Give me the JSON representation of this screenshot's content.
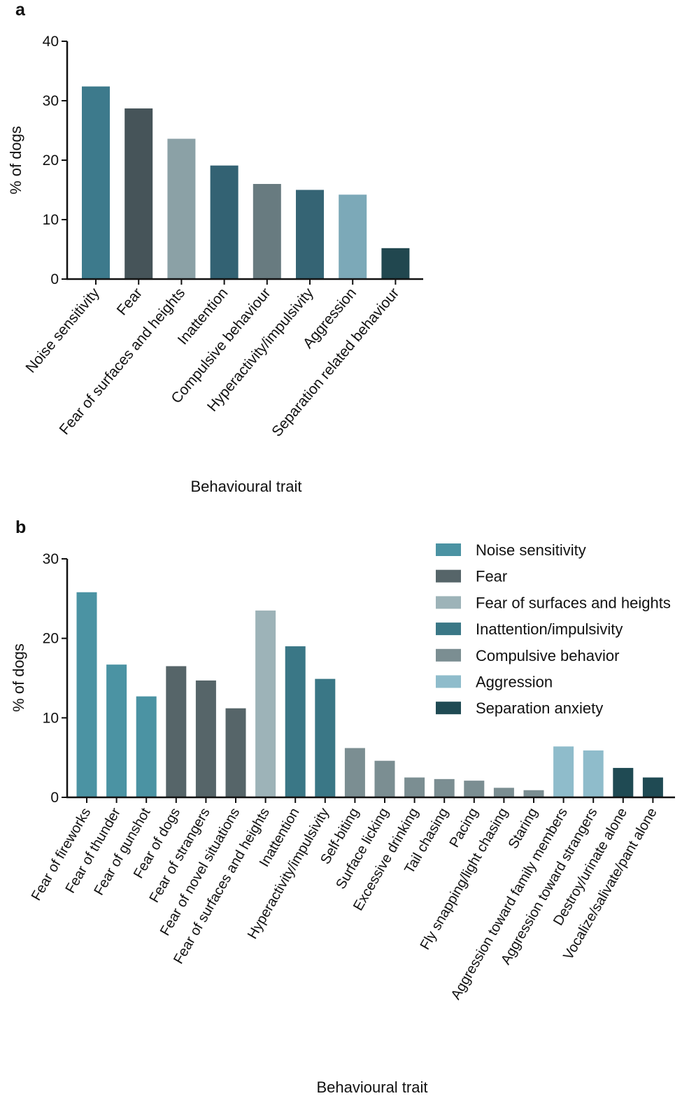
{
  "chart_data": [
    {
      "panel_label": "a",
      "type": "bar",
      "ylabel": "% of dogs",
      "xlabel": "Behavioural trait",
      "ylim": [
        0,
        40
      ],
      "yticks": [
        0,
        10,
        20,
        30,
        40
      ],
      "categories": [
        "Noise sensitivity",
        "Fear",
        "Fear of surfaces and heights",
        "Inattention",
        "Compulsive behaviour",
        "Hyperactivity/impulsivity",
        "Aggression",
        "Separation related behaviour"
      ],
      "values": [
        32.4,
        28.7,
        23.6,
        19.1,
        16.0,
        15.0,
        14.2,
        5.2
      ],
      "colors": [
        "#3d7a8c",
        "#465459",
        "#8ba1a6",
        "#336273",
        "#687b80",
        "#356474",
        "#7ca9b8",
        "#21474f"
      ],
      "grid": false
    },
    {
      "panel_label": "b",
      "type": "bar",
      "ylabel": "% of dogs",
      "xlabel": "Behavioural trait",
      "ylim": [
        0,
        30
      ],
      "yticks": [
        0,
        10,
        20,
        30
      ],
      "categories": [
        "Fear of fireworks",
        "Fear of thunder",
        "Fear of gunshot",
        "Fear of dogs",
        "Fear of strangers",
        "Fear of novel situations",
        "Fear of surfaces and heights",
        "Inattention",
        "Hyperactivity/impulsivity",
        "Self-biting",
        "Surface licking",
        "Excessive drinking",
        "Tail chasing",
        "Pacing",
        "Fly snapping/light chasing",
        "Staring",
        "Aggression toward family members",
        "Aggression toward strangers",
        "Destroy/urinate alone",
        "Vocalize/salivate/pant alone"
      ],
      "values": [
        25.8,
        16.7,
        12.7,
        16.5,
        14.7,
        11.2,
        23.5,
        19.0,
        14.9,
        6.2,
        4.6,
        2.5,
        2.3,
        2.1,
        1.2,
        0.9,
        6.4,
        5.9,
        3.7,
        2.5
      ],
      "groups": [
        0,
        0,
        0,
        1,
        1,
        1,
        2,
        3,
        3,
        4,
        4,
        4,
        4,
        4,
        4,
        4,
        5,
        5,
        6,
        6
      ],
      "legend": {
        "placement": "top-right",
        "entries": [
          {
            "name": "Noise sensitivity",
            "color": "#4b93a3"
          },
          {
            "name": "Fear",
            "color": "#566569"
          },
          {
            "name": "Fear of surfaces and heights",
            "color": "#9db3b8"
          },
          {
            "name": "Inattention/impulsivity",
            "color": "#3a7786"
          },
          {
            "name": "Compulsive behavior",
            "color": "#7b8e92"
          },
          {
            "name": "Aggression",
            "color": "#8fbccb"
          },
          {
            "name": "Separation anxiety",
            "color": "#1f4a53"
          }
        ]
      },
      "grid": false
    }
  ]
}
